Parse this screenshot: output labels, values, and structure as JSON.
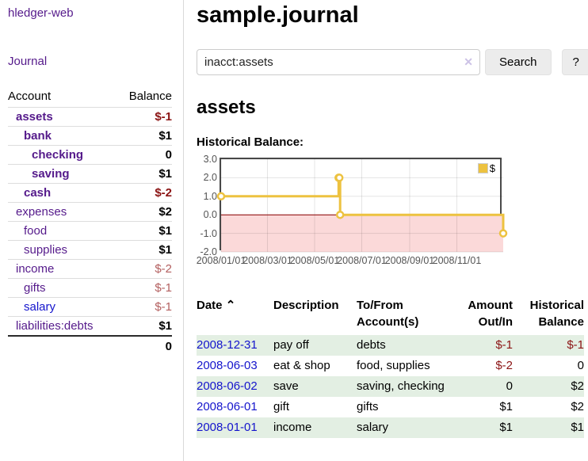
{
  "sidebar": {
    "app_title": "hledger-web",
    "nav_journal": "Journal",
    "account_header": "Account",
    "balance_header": "Balance",
    "accounts": [
      {
        "label": "assets",
        "balance": "$-1",
        "depth": 1,
        "bold": true
      },
      {
        "label": "bank",
        "balance": "$1",
        "depth": 2,
        "bold": true
      },
      {
        "label": "checking",
        "balance": "0",
        "depth": 3,
        "bold": true
      },
      {
        "label": "saving",
        "balance": "$1",
        "depth": 3,
        "bold": true
      },
      {
        "label": "cash",
        "balance": "$-2",
        "depth": 2,
        "bold": true
      },
      {
        "label": "expenses",
        "balance": "$2",
        "depth": 1,
        "bold": false
      },
      {
        "label": "food",
        "balance": "$1",
        "depth": 2,
        "bold": false
      },
      {
        "label": "supplies",
        "balance": "$1",
        "depth": 2,
        "bold": false
      },
      {
        "label": "income",
        "balance": "$-2",
        "depth": 1,
        "bold": false
      },
      {
        "label": "gifts",
        "balance": "$-1",
        "depth": 2,
        "bold": false
      },
      {
        "label": "salary",
        "balance": "$-1",
        "depth": 2,
        "bold": false,
        "blue": true
      },
      {
        "label": "liabilities:debts",
        "balance": "$1",
        "depth": 1,
        "bold": false
      }
    ],
    "total": "0"
  },
  "header": {
    "title": "sample.journal"
  },
  "search": {
    "value": "inacct:assets",
    "clear_icon": "✕",
    "button_label": "Search",
    "help_label": "?"
  },
  "account_page": {
    "heading": "assets",
    "chart_label": "Historical Balance:"
  },
  "chart_data": {
    "type": "line",
    "step": true,
    "title": "Historical Balance",
    "series": [
      {
        "name": "$",
        "points": [
          [
            "2008-01-01",
            1
          ],
          [
            "2008-06-01",
            2
          ],
          [
            "2008-06-02",
            2
          ],
          [
            "2008-06-03",
            0
          ],
          [
            "2008-12-31",
            -1
          ]
        ]
      }
    ],
    "xlim": [
      "2008-01-01",
      "2008-12-31"
    ],
    "ylim": [
      -2,
      3
    ],
    "yticks": [
      {
        "value": 3,
        "label": "3.0"
      },
      {
        "value": 2,
        "label": "2.0"
      },
      {
        "value": 1,
        "label": "1.0"
      },
      {
        "value": 0,
        "label": "0.0"
      },
      {
        "value": -1,
        "label": "-1.0"
      },
      {
        "value": -2,
        "label": "-2.0"
      }
    ],
    "xticks": [
      {
        "value": "2008-01-01",
        "label": "2008/01/01"
      },
      {
        "value": "2008-03-01",
        "label": "2008/03/01"
      },
      {
        "value": "2008-05-01",
        "label": "2008/05/01"
      },
      {
        "value": "2008-07-01",
        "label": "2008/07/01"
      },
      {
        "value": "2008-09-01",
        "label": "2008/09/01"
      },
      {
        "value": "2008-11-01",
        "label": "2008/11/01"
      }
    ],
    "legend": {
      "label": "$",
      "position": "top-right"
    },
    "grid": true
  },
  "register": {
    "sort_icon": "⌃",
    "headers": [
      {
        "line1": "Date",
        "line2": ""
      },
      {
        "line1": "Description",
        "line2": ""
      },
      {
        "line1": "To/From",
        "line2": "Account(s)"
      },
      {
        "line1": "Amount",
        "line2": "Out/In"
      },
      {
        "line1": "Historical",
        "line2": "Balance"
      }
    ],
    "rows": [
      {
        "date": "2008-12-31",
        "description": "pay off",
        "accounts": "debts",
        "amount": "$-1",
        "balance": "$-1"
      },
      {
        "date": "2008-06-03",
        "description": "eat & shop",
        "accounts": "food, supplies",
        "amount": "$-2",
        "balance": "0"
      },
      {
        "date": "2008-06-02",
        "description": "save",
        "accounts": "saving, checking",
        "amount": "0",
        "balance": "$2"
      },
      {
        "date": "2008-06-01",
        "description": "gift",
        "accounts": "gifts",
        "amount": "$1",
        "balance": "$2"
      },
      {
        "date": "2008-01-01",
        "description": "income",
        "accounts": "salary",
        "amount": "$1",
        "balance": "$1"
      }
    ]
  },
  "colors": {
    "accent_purple": "#551a8b",
    "link_blue": "#1414cc",
    "negative_strong": "#8b1414",
    "negative_soft": "#b35f5f",
    "row_green": "#e3efe3",
    "series_gold": "#edc240",
    "zero_line": "#8b0000",
    "negative_region": "#fbd9d9",
    "chart_border": "#4a4a4a",
    "tick_text": "#545454"
  }
}
